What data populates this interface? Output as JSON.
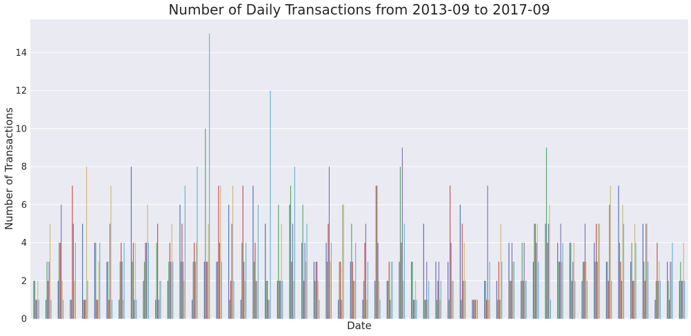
{
  "chart_data": {
    "type": "bar",
    "title": "Number of Daily Transactions from 2013-09 to 2017-09",
    "xlabel": "Date",
    "ylabel": "Number of Transactions",
    "ylim": [
      0,
      15.75
    ],
    "yticks": [
      0,
      2,
      4,
      6,
      8,
      10,
      12,
      14
    ],
    "xtick_labels_visible": false,
    "grid": true,
    "colors": [
      "#4c72b0",
      "#55a868",
      "#c44e52",
      "#8172b2",
      "#ccb974",
      "#64b5cd"
    ],
    "background": "#eaeaf2",
    "groups": [
      [
        2,
        2,
        1,
        1,
        2,
        1
      ],
      [
        1,
        3,
        2,
        3,
        5,
        1
      ],
      [
        2,
        4,
        4,
        6,
        2,
        1
      ],
      [
        1,
        1,
        7,
        5,
        2,
        4
      ],
      [
        5,
        1,
        1,
        1,
        8,
        2
      ],
      [
        4,
        4,
        1,
        1,
        3,
        4
      ],
      [
        3,
        3,
        1,
        5,
        7,
        1
      ],
      [
        1,
        3,
        4,
        3,
        1,
        4
      ],
      [
        8,
        3,
        4,
        1,
        4,
        1
      ],
      [
        2,
        3,
        4,
        4,
        6,
        4
      ],
      [
        1,
        4,
        5,
        1,
        2,
        2
      ],
      [
        2,
        3,
        4,
        3,
        5,
        3
      ],
      [
        6,
        3,
        5,
        3,
        2,
        7
      ],
      [
        1,
        3,
        4,
        3,
        4,
        8
      ],
      [
        3,
        10,
        3,
        3,
        5,
        15
      ],
      [
        3,
        3,
        7,
        4,
        7,
        3
      ],
      [
        6,
        1,
        2,
        5,
        7,
        2
      ],
      [
        1,
        4,
        7,
        3,
        2,
        4
      ],
      [
        7,
        3,
        4,
        2,
        2,
        6
      ],
      [
        5,
        2,
        2,
        1,
        1,
        12
      ],
      [
        2,
        6,
        2,
        2,
        5,
        2
      ],
      [
        6,
        7,
        3,
        5,
        2,
        8
      ],
      [
        4,
        6,
        2,
        4,
        3,
        5
      ],
      [
        3,
        2,
        3,
        3,
        2,
        1
      ],
      [
        4,
        3,
        5,
        8,
        3,
        4
      ],
      [
        1,
        3,
        3,
        1,
        6,
        6
      ],
      [
        3,
        5,
        3,
        2,
        2,
        4
      ],
      [
        1,
        2,
        4,
        5,
        1,
        3
      ],
      [
        2,
        7,
        7,
        4,
        2,
        1
      ],
      [
        2,
        2,
        3,
        1,
        3,
        3
      ],
      [
        3,
        8,
        4,
        9,
        2,
        5
      ],
      [
        3,
        3,
        1,
        1,
        2,
        1
      ],
      [
        5,
        1,
        1,
        3,
        1,
        2
      ],
      [
        3,
        1,
        2,
        3,
        1,
        2
      ],
      [
        3,
        1,
        7,
        4,
        2,
        2
      ],
      [
        6,
        1,
        5,
        2,
        4,
        2
      ],
      [
        1,
        1,
        1,
        1,
        1,
        1
      ],
      [
        2,
        2,
        1,
        7,
        1,
        3
      ],
      [
        2,
        1,
        3,
        1,
        5,
        3
      ],
      [
        4,
        2,
        2,
        4,
        3,
        3
      ],
      [
        2,
        4,
        2,
        4,
        2,
        2
      ],
      [
        3,
        5,
        5,
        4,
        5,
        3
      ],
      [
        5,
        9,
        4,
        5,
        6,
        1
      ],
      [
        4,
        3,
        3,
        5,
        3,
        4
      ],
      [
        4,
        4,
        2,
        3,
        4,
        2
      ],
      [
        2,
        3,
        3,
        5,
        3,
        2
      ],
      [
        4,
        3,
        5,
        3,
        5,
        5
      ],
      [
        3,
        3,
        2,
        6,
        7,
        2
      ],
      [
        7,
        4,
        3,
        2,
        6,
        5
      ],
      [
        3,
        4,
        2,
        2,
        5,
        4
      ],
      [
        5,
        3,
        2,
        5,
        5,
        3
      ],
      [
        1,
        2,
        4,
        2,
        3,
        2
      ],
      [
        3,
        2,
        1,
        3,
        3,
        4
      ],
      [
        2,
        3,
        2,
        2,
        4,
        2
      ]
    ]
  }
}
